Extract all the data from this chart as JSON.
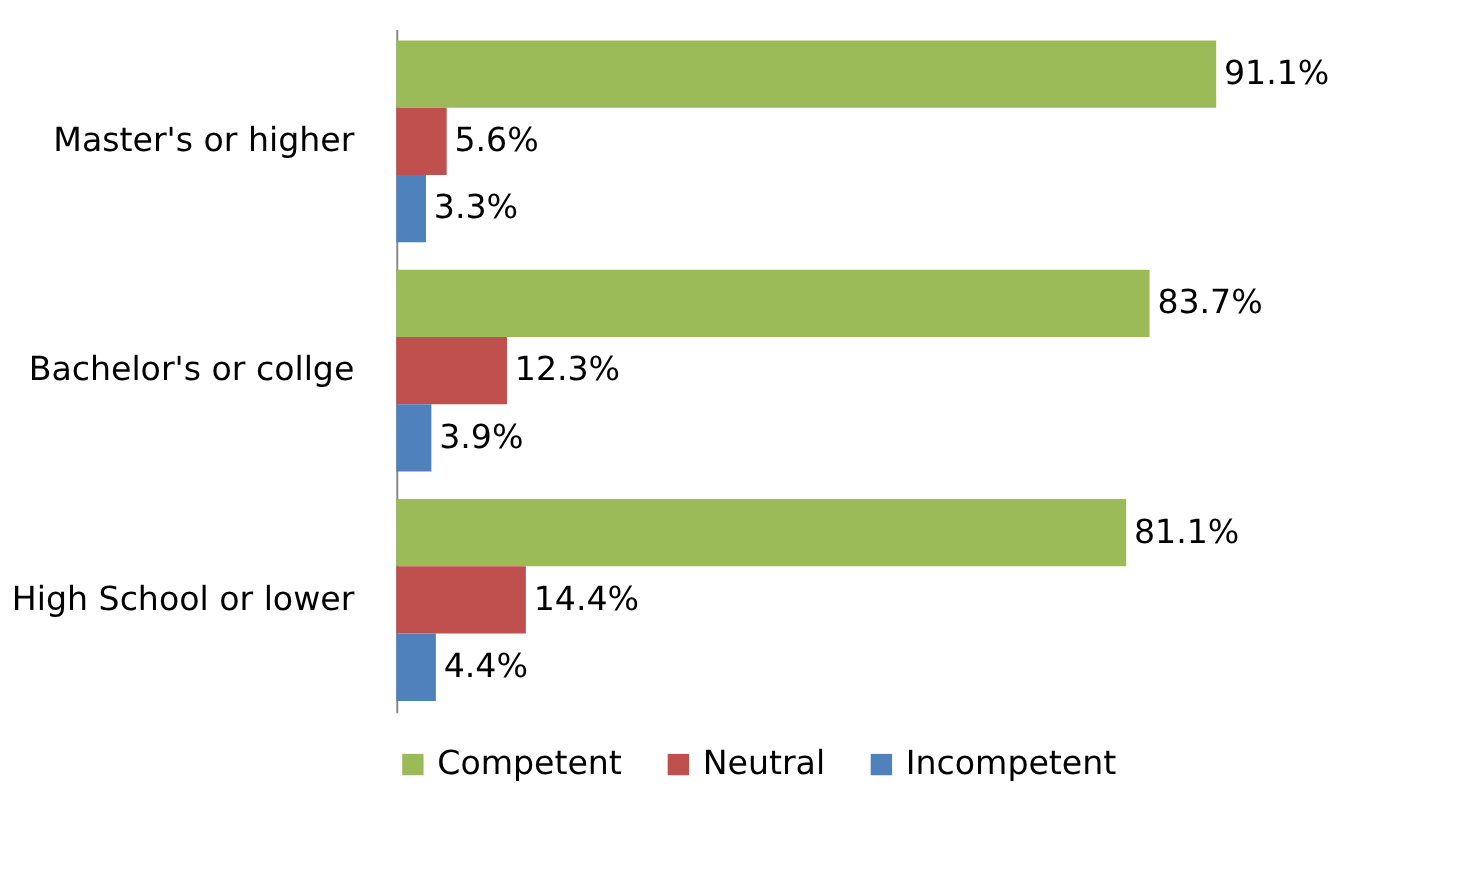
{
  "chart_data": {
    "type": "bar",
    "orientation": "horizontal",
    "categories": [
      "Master's or higher",
      "Bachelor's or collge",
      "High School or lower"
    ],
    "series": [
      {
        "name": "Competent",
        "color": "#9bbb59",
        "values": [
          91.1,
          83.7,
          81.1
        ],
        "value_labels": [
          "91.1%",
          "83.7%",
          "81.1%"
        ]
      },
      {
        "name": "Neutral",
        "color": "#c0504d",
        "values": [
          5.6,
          12.3,
          14.4
        ],
        "value_labels": [
          "5.6%",
          "12.3%",
          "14.4%"
        ]
      },
      {
        "name": "Incompetent",
        "color": "#4f81bd",
        "values": [
          3.3,
          3.9,
          4.4
        ],
        "value_labels": [
          "3.3%",
          "3.9%",
          "4.4%"
        ]
      }
    ],
    "legend": "bottom"
  }
}
